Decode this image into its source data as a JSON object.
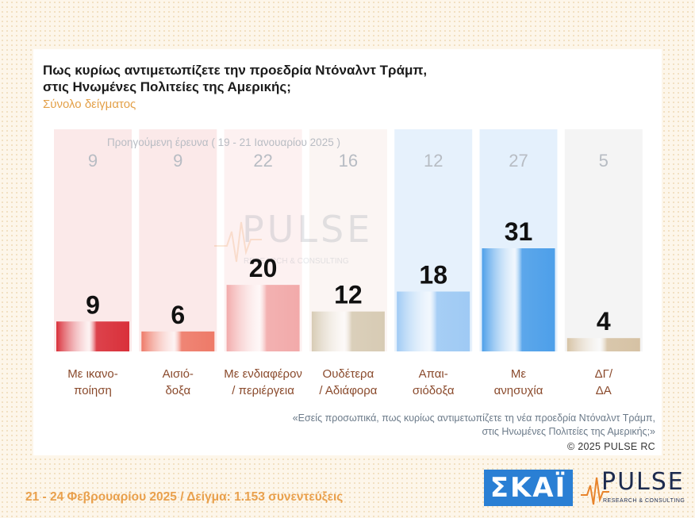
{
  "title_line1": "Πως κυρίως αντιμετωπίζετε την προεδρία Ντόναλντ Τράμπ,",
  "title_line2": "στις Ηνωμένες Πολιτείες της Αμερικής;",
  "subtitle": "Σύνολο δείγματος",
  "note_line1": "«Εσείς προσωπικά, πως κυρίως αντιμετωπίζετε τη νέα προεδρία Ντόναλντ Τράμπ,",
  "note_line2": "στις Ηνωμένες Πολιτείες της Αμερικής;»",
  "copyright": "©  2025  PULSE RC",
  "footer": "21 - 24 Φεβρουαρίου 2025  /  Δείγμα:  1.153 συνεντεύξεις",
  "logos": {
    "skai": "ΣΚΑΪ",
    "pulse_name": "PULSE",
    "pulse_sub": "RESEARCH & CONSULTING",
    "watermark_name": "PULSE",
    "watermark_sub": "RESEARCH & CONSULTING"
  },
  "chart_data": {
    "type": "bar",
    "previous_label": "Προηγούμενη έρευνα ( 19 - 21 Ιανουαρίου 2025 )",
    "categories": [
      [
        "Με ικανο-",
        "ποίηση"
      ],
      [
        "Αισιό-",
        "δοξα"
      ],
      [
        "Με ενδιαφέρον",
        "/ περιέργεια"
      ],
      [
        "Ουδέτερα",
        "/ Αδιάφορα"
      ],
      [
        "Απαι-",
        "σιόδοξα"
      ],
      [
        "Με",
        "ανησυχία"
      ],
      [
        "ΔΓ/",
        "ΔΑ"
      ]
    ],
    "series": [
      {
        "values": [
          9,
          6,
          20,
          12,
          18,
          31,
          4
        ]
      },
      {
        "values": [
          9,
          9,
          22,
          16,
          12,
          27,
          5
        ]
      }
    ],
    "ylim": [
      0,
      35
    ],
    "colors": {
      "bars": [
        "#d9303a",
        "#ee7a68",
        "#f2aaaa",
        "#d7cbb4",
        "#9fcaf4",
        "#4d9fe9",
        "#d6c2a4"
      ],
      "columns": [
        "#fbe9e9",
        "#fbe9e9",
        "#fdf1f1",
        "#fbf5f3",
        "#e6f1fc",
        "#e4f0fc",
        "#f4f4f4"
      ],
      "value_labels": "#111111",
      "previous_values": "#b7bcc3",
      "category_labels": "#8a4a2c"
    },
    "grid": false,
    "legend": "none"
  }
}
